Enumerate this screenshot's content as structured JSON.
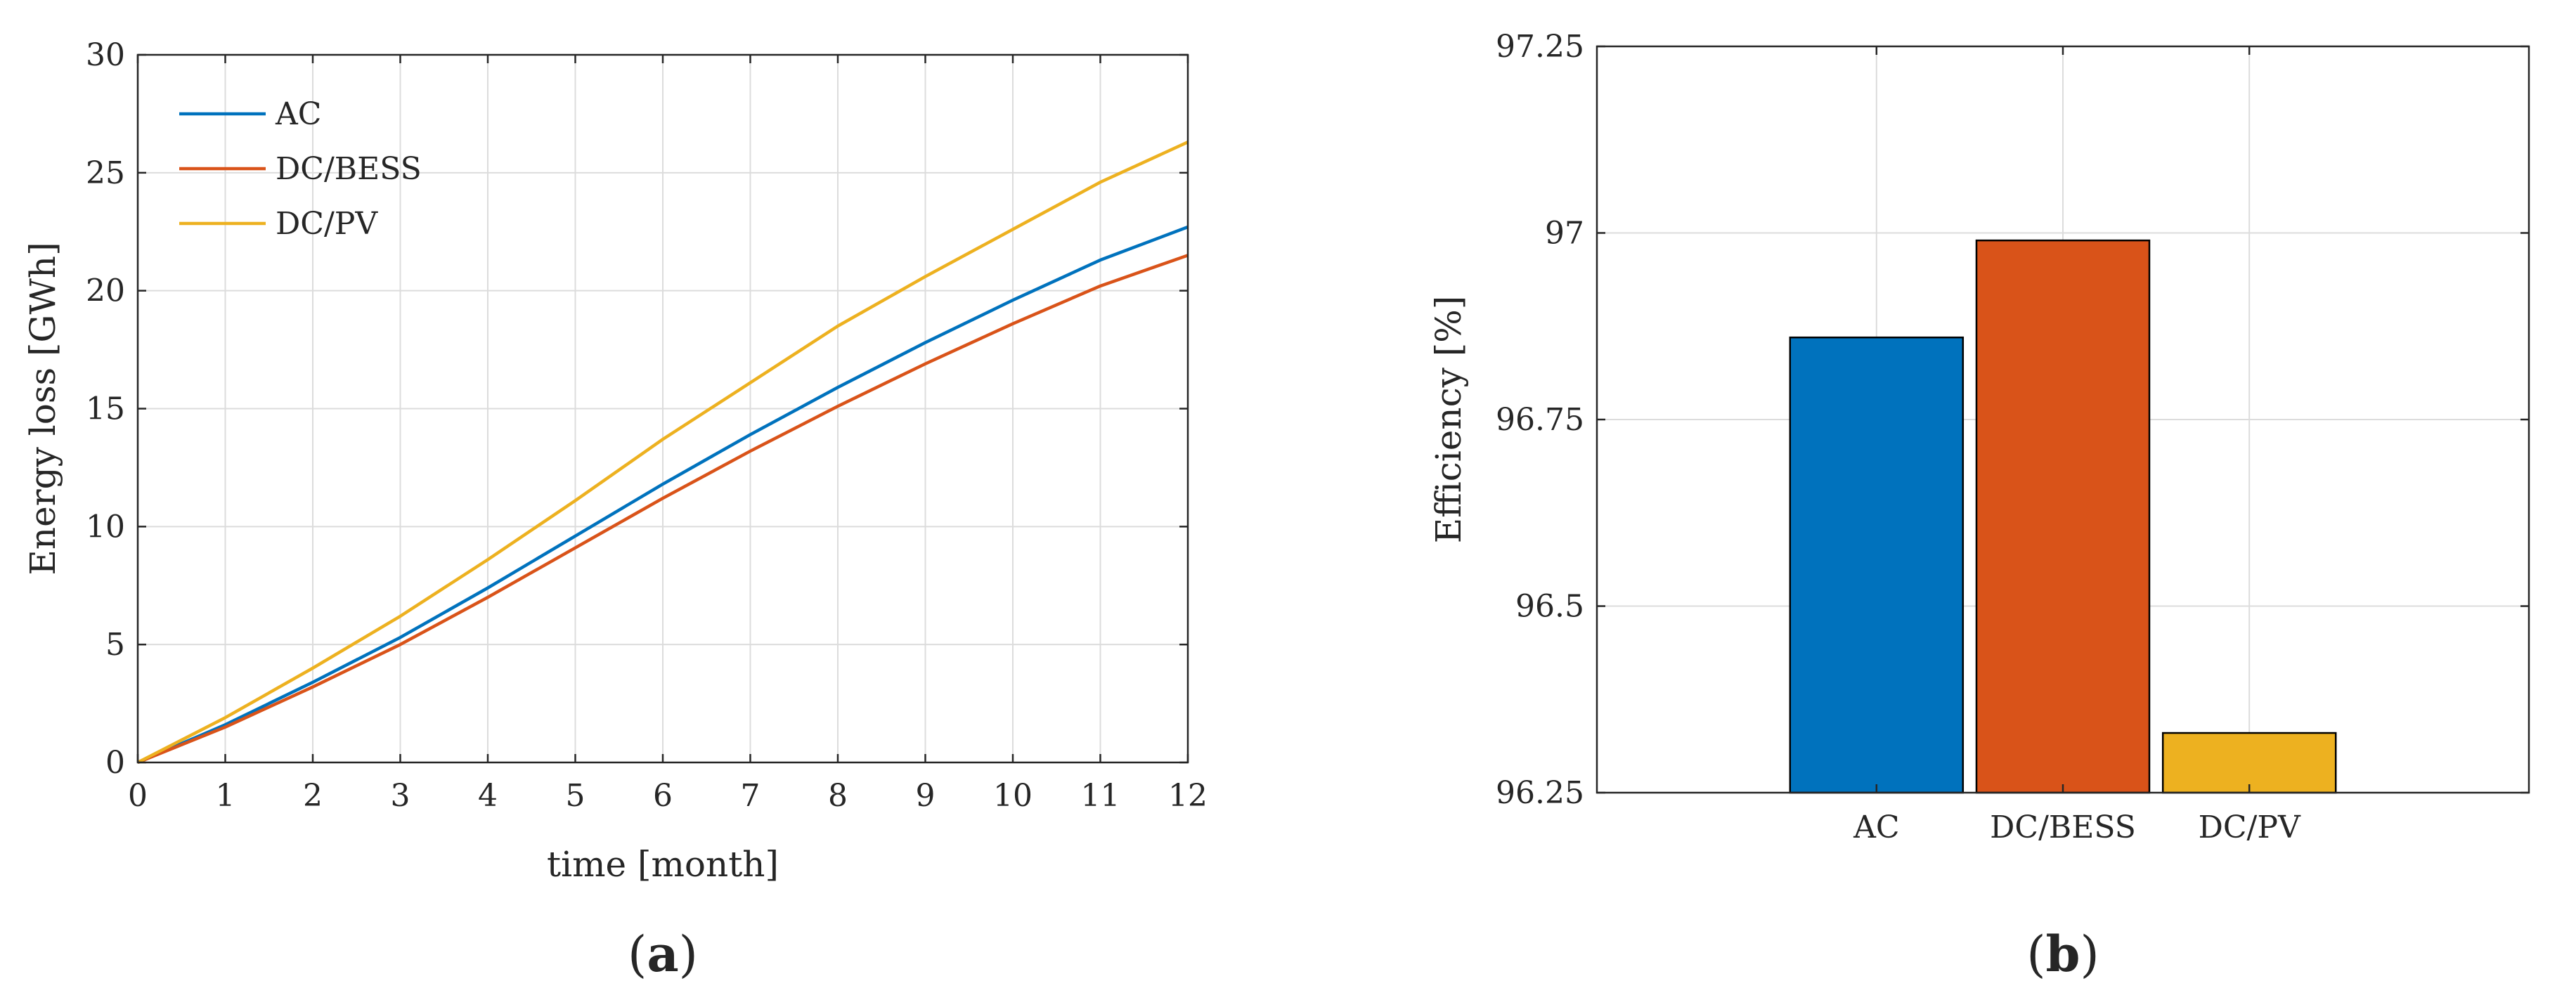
{
  "colors": {
    "AC": "#0072BD",
    "DC/BESS": "#D95319",
    "DC/PV": "#EDB120",
    "grid": "#dcdcdc",
    "axis": "#262626"
  },
  "panel_labels": [
    {
      "open": "(",
      "letter": "a",
      "close": ")"
    },
    {
      "open": "(",
      "letter": "b",
      "close": ")"
    }
  ],
  "chart_data": [
    {
      "type": "line",
      "xlabel": "time [month]",
      "ylabel": "Energy loss [GWh]",
      "xlim": [
        0,
        12
      ],
      "ylim": [
        0,
        30
      ],
      "xticks": [
        "0",
        "1",
        "2",
        "3",
        "4",
        "5",
        "6",
        "7",
        "8",
        "9",
        "10",
        "11",
        "12"
      ],
      "yticks": [
        "0",
        "5",
        "10",
        "15",
        "20",
        "25",
        "30"
      ],
      "grid": true,
      "legend_position": "top-left",
      "series": [
        {
          "name": "AC",
          "x": [
            0,
            1,
            2,
            3,
            4,
            5,
            6,
            7,
            8,
            9,
            10,
            11,
            12
          ],
          "y": [
            0,
            1.6,
            3.4,
            5.3,
            7.4,
            9.6,
            11.8,
            13.9,
            15.9,
            17.8,
            19.6,
            21.3,
            22.7
          ]
        },
        {
          "name": "DC/BESS",
          "x": [
            0,
            1,
            2,
            3,
            4,
            5,
            6,
            7,
            8,
            9,
            10,
            11,
            12
          ],
          "y": [
            0,
            1.5,
            3.2,
            5.0,
            7.0,
            9.1,
            11.2,
            13.2,
            15.1,
            16.9,
            18.6,
            20.2,
            21.5
          ]
        },
        {
          "name": "DC/PV",
          "x": [
            0,
            1,
            2,
            3,
            4,
            5,
            6,
            7,
            8,
            9,
            10,
            11,
            12
          ],
          "y": [
            0,
            1.9,
            4.0,
            6.2,
            8.6,
            11.1,
            13.7,
            16.1,
            18.5,
            20.6,
            22.6,
            24.6,
            26.3
          ]
        }
      ]
    },
    {
      "type": "bar",
      "ylabel": "Efficiency [%]",
      "categories": [
        "AC",
        "DC/BESS",
        "DC/PV"
      ],
      "values": [
        96.86,
        96.99,
        96.33
      ],
      "ylim": [
        96.25,
        97.25
      ],
      "yticks": [
        "96.25",
        "96.5",
        "96.75",
        "97",
        "97.25"
      ],
      "grid": true
    }
  ]
}
